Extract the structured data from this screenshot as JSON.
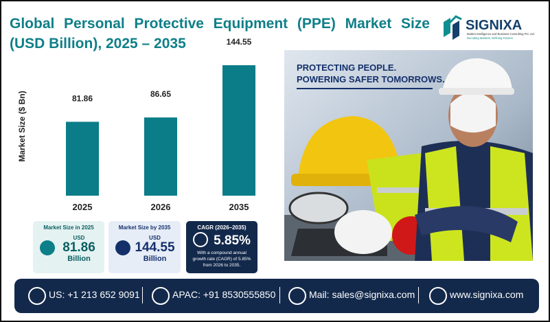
{
  "chart_data": {
    "type": "bar",
    "title": "Global Personal Protective Equipment (PPE) Market Size (USD Billion), 2025 – 2035",
    "y_label": "Market Size ($ Bn)",
    "categories": [
      "2025",
      "2026",
      "2035"
    ],
    "values": [
      81.86,
      86.65,
      144.55
    ],
    "color": "#0a7d88"
  },
  "logo": {
    "name": "SIGNIXA",
    "tagline": "Market Intelligence and Business Consulting Pvt. Ltd.",
    "motto": "Decoding Markets, Defining Futures"
  },
  "cards": [
    {
      "title": "Market Size in 2025",
      "unit": "USD",
      "value": "81.86",
      "suffix": "Billion"
    },
    {
      "title": "Market Size by 2035",
      "unit": "USD",
      "value": "144.55",
      "suffix": "Billion"
    },
    {
      "title": "CAGR (2026–2035)",
      "value": "5.85%",
      "note": "With a compound annual growth rate (CAGR) of 5.85% from 2026 to 2035."
    }
  ],
  "banner": {
    "line1": "PROTECTING PEOPLE.",
    "line2": "POWERING SAFER TOMORROWS."
  },
  "footer": [
    "US: +1 213 652 9091",
    "APAC: +91 8530555850",
    "Mail: sales@signixa.com",
    "www.signixa.com"
  ]
}
